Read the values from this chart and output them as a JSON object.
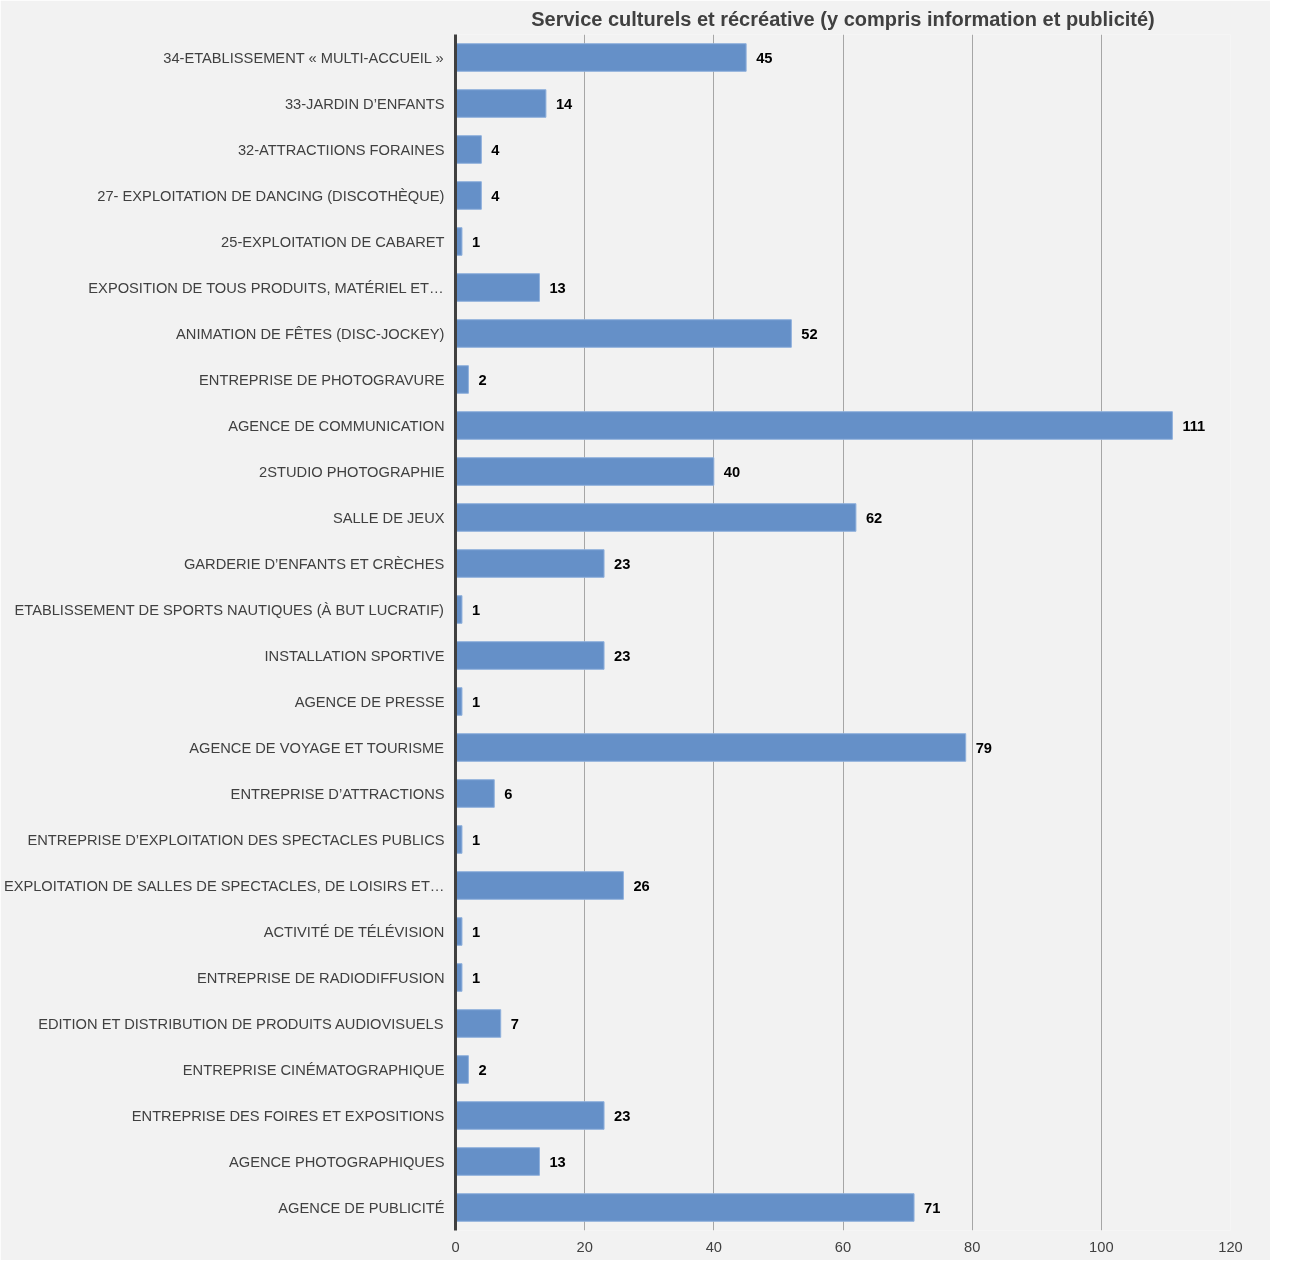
{
  "chart_data": {
    "type": "bar",
    "orientation": "horizontal",
    "title": "Service culturels et récréative (y compris information et publicité)",
    "categories": [
      "34-ETABLISSEMENT « MULTI-ACCUEIL »",
      "33-JARDIN D’ENFANTS",
      "32-ATTRACTIIONS FORAINES",
      "27- EXPLOITATION DE DANCING (DISCOTHÈQUE)",
      "25-EXPLOITATION DE CABARET",
      "EXPOSITION DE TOUS PRODUITS, MATÉRIEL ET…",
      "ANIMATION DE FÊTES (DISC-JOCKEY)",
      "ENTREPRISE DE PHOTOGRAVURE",
      "AGENCE DE COMMUNICATION",
      "2STUDIO PHOTOGRAPHIE",
      "SALLE DE JEUX",
      "GARDERIE D’ENFANTS ET CRÈCHES",
      "ETABLISSEMENT DE SPORTS NAUTIQUES (À BUT LUCRATIF)",
      "INSTALLATION SPORTIVE",
      "AGENCE DE PRESSE",
      "AGENCE DE VOYAGE ET TOURISME",
      "ENTREPRISE D’ATTRACTIONS",
      "ENTREPRISE D’EXPLOITATION DES SPECTACLES PUBLICS",
      "EXPLOITATION DE SALLES DE SPECTACLES, DE LOISIRS ET…",
      "ACTIVITÉ DE TÉLÉVISION",
      "ENTREPRISE DE RADIODIFFUSION",
      "EDITION ET DISTRIBUTION DE PRODUITS AUDIOVISUELS",
      "ENTREPRISE CINÉMATOGRAPHIQUE",
      "ENTREPRISE DES FOIRES ET EXPOSITIONS",
      "AGENCE PHOTOGRAPHIQUES",
      "AGENCE DE PUBLICITÉ"
    ],
    "values": [
      45,
      14,
      4,
      4,
      1,
      13,
      52,
      2,
      111,
      40,
      62,
      23,
      1,
      23,
      1,
      79,
      6,
      1,
      26,
      1,
      1,
      7,
      2,
      23,
      13,
      71
    ],
    "color": "#6590c8",
    "xlim": [
      0,
      120
    ],
    "xticks": [
      0,
      20,
      40,
      60,
      80,
      100,
      120
    ],
    "grid": "x",
    "data_labels": true
  }
}
